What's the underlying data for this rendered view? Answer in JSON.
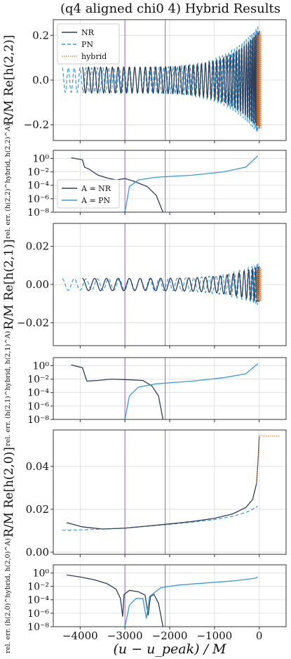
{
  "title": "(q4 aligned chi0 4) Hybrid Results",
  "x_axis_label": "(u − u_peak) / M",
  "x_ticks": [
    -4000,
    -3000,
    -2000,
    -1000,
    0
  ],
  "x_range": [
    -4600,
    600
  ],
  "vlines": [
    -3000,
    -2100
  ],
  "colors": {
    "nr": "#2e3f5c",
    "pn": "#3a9ad9",
    "hybrid": "#e8843a",
    "vline": "#9467bd",
    "grid": "#d8d8d8"
  },
  "chart_data": [
    {
      "id": "h22",
      "type": "line",
      "ylabel": "R/M Re[h(2,2)]",
      "ylim": [
        -0.27,
        0.27
      ],
      "yticks": [
        {
          "v": -0.2,
          "label": "−0.2"
        },
        {
          "v": 0.0,
          "label": "0.0"
        },
        {
          "v": 0.2,
          "label": "0.2"
        }
      ],
      "legend": {
        "placement": "top-left",
        "entries": [
          "NR",
          "PN",
          "hybrid"
        ]
      },
      "series": [
        {
          "name": "NR",
          "style": "solid",
          "x_start": -3950,
          "x_end": 0,
          "amp_start": 0.058,
          "amp_peak": 0.22,
          "cycles": 46
        },
        {
          "name": "PN",
          "style": "dashed",
          "x_start": -4400,
          "x_end": -30,
          "amp_start": 0.055,
          "amp_peak": 0.24,
          "cycles": 52
        },
        {
          "name": "hybrid",
          "style": "dotted",
          "x_start": -60,
          "x_end": 40,
          "amp_start": 0.2,
          "amp_peak": 0.22,
          "cycles": 5
        }
      ]
    },
    {
      "id": "err22",
      "type": "line",
      "scale": "log",
      "ylabel": "rel. err. (h(2,2)^hybrid, h(2,2)^A)",
      "ylim_log10": [
        -8,
        1.2
      ],
      "yticks": [
        {
          "v": 0,
          "label": "10⁰"
        },
        {
          "v": -2,
          "label": "10⁻²"
        },
        {
          "v": -4,
          "label": "10⁻⁴"
        },
        {
          "v": -6,
          "label": "10⁻⁶"
        },
        {
          "v": -8,
          "label": "10⁻⁸"
        }
      ],
      "legend": {
        "placement": "lower-left",
        "entries": [
          "A = NR",
          "A = PN"
        ]
      },
      "series": [
        {
          "name": "A = NR",
          "points": [
            [
              -4200,
              0.1
            ],
            [
              -3950,
              -0.2
            ],
            [
              -3900,
              -1.3
            ],
            [
              -3800,
              -1.6
            ],
            [
              -3600,
              -2.5
            ],
            [
              -3400,
              -2.9
            ],
            [
              -3200,
              -3.2
            ],
            [
              -3000,
              -3.0
            ],
            [
              -2800,
              -3.4
            ],
            [
              -2500,
              -4.2
            ],
            [
              -2300,
              -5.5
            ],
            [
              -2150,
              -8
            ]
          ]
        },
        {
          "name": "A = PN",
          "points": [
            [
              -3000,
              -8
            ],
            [
              -2900,
              -4.2
            ],
            [
              -2700,
              -3.2
            ],
            [
              -2300,
              -2.8
            ],
            [
              -1500,
              -2.5
            ],
            [
              -800,
              -2.0
            ],
            [
              -300,
              -1.3
            ],
            [
              -30,
              0.4
            ]
          ]
        }
      ]
    },
    {
      "id": "h21",
      "type": "line",
      "ylabel": "R/M Re[h(2,1)]",
      "ylim": [
        -0.032,
        0.032
      ],
      "yticks": [
        {
          "v": -0.02,
          "label": "−0.02"
        },
        {
          "v": 0.0,
          "label": "0.00"
        },
        {
          "v": 0.02,
          "label": "0.02"
        }
      ],
      "series": [
        {
          "name": "NR",
          "style": "solid",
          "x_start": -3950,
          "x_end": 0,
          "amp_start": 0.0032,
          "amp_peak": 0.0095,
          "cycles": 23
        },
        {
          "name": "PN",
          "style": "dashed",
          "x_start": -4400,
          "x_end": -30,
          "amp_start": 0.003,
          "amp_peak": 0.011,
          "cycles": 26
        },
        {
          "name": "hybrid",
          "style": "dotted",
          "x_start": -60,
          "x_end": 40,
          "amp_start": 0.008,
          "amp_peak": 0.009,
          "cycles": 4
        }
      ]
    },
    {
      "id": "err21",
      "type": "line",
      "scale": "log",
      "ylabel": "rel. err. (h(2,1)^hybrid, h(2,1)^A)",
      "ylim_log10": [
        -8,
        1.2
      ],
      "yticks": [
        {
          "v": 0,
          "label": "10⁰"
        },
        {
          "v": -2,
          "label": "10⁻²"
        },
        {
          "v": -4,
          "label": "10⁻⁴"
        },
        {
          "v": -6,
          "label": "10⁻⁶"
        },
        {
          "v": -8,
          "label": "10⁻⁸"
        }
      ],
      "series": [
        {
          "name": "A = NR",
          "points": [
            [
              -4200,
              0.1
            ],
            [
              -3950,
              -0.3
            ],
            [
              -3850,
              -2.3
            ],
            [
              -3600,
              -2.2
            ],
            [
              -3300,
              -2.0
            ],
            [
              -2900,
              -2.1
            ],
            [
              -2600,
              -2.2
            ],
            [
              -2400,
              -3.0
            ],
            [
              -2250,
              -4.5
            ],
            [
              -2150,
              -8
            ]
          ]
        },
        {
          "name": "A = PN",
          "points": [
            [
              -3000,
              -8
            ],
            [
              -2900,
              -4.5
            ],
            [
              -2700,
              -3.2
            ],
            [
              -2300,
              -2.7
            ],
            [
              -1500,
              -2.3
            ],
            [
              -800,
              -1.8
            ],
            [
              -300,
              -1.2
            ],
            [
              -30,
              0.3
            ]
          ]
        }
      ]
    },
    {
      "id": "h20",
      "type": "line",
      "ylabel": "R/M Re[h(2,0)]",
      "ylim": [
        -0.001,
        0.057
      ],
      "yticks": [
        {
          "v": 0.0,
          "label": "0.00"
        },
        {
          "v": 0.02,
          "label": "0.02"
        },
        {
          "v": 0.04,
          "label": "0.04"
        }
      ],
      "series": [
        {
          "name": "NR",
          "style": "solid",
          "points": [
            [
              -4300,
              0.0138
            ],
            [
              -3950,
              0.0118
            ],
            [
              -3500,
              0.0108
            ],
            [
              -3000,
              0.0112
            ],
            [
              -2500,
              0.0122
            ],
            [
              -2000,
              0.0132
            ],
            [
              -1500,
              0.0143
            ],
            [
              -1000,
              0.0158
            ],
            [
              -600,
              0.0178
            ],
            [
              -300,
              0.0208
            ],
            [
              -150,
              0.0245
            ],
            [
              -60,
              0.032
            ],
            [
              -20,
              0.045
            ],
            [
              0,
              0.054
            ]
          ]
        },
        {
          "name": "PN",
          "style": "dashed",
          "points": [
            [
              -4400,
              0.0102
            ],
            [
              -4000,
              0.0104
            ],
            [
              -3500,
              0.0108
            ],
            [
              -3000,
              0.0112
            ],
            [
              -2500,
              0.0121
            ],
            [
              -2000,
              0.013
            ],
            [
              -1500,
              0.014
            ],
            [
              -1000,
              0.0152
            ],
            [
              -600,
              0.0167
            ],
            [
              -300,
              0.0185
            ],
            [
              -100,
              0.0205
            ],
            [
              -30,
              0.0215
            ]
          ]
        },
        {
          "name": "hybrid",
          "style": "dotted",
          "points": [
            [
              -60,
              0.032
            ],
            [
              -20,
              0.045
            ],
            [
              0,
              0.0545
            ],
            [
              100,
              0.0542
            ],
            [
              300,
              0.0542
            ],
            [
              450,
              0.0542
            ]
          ]
        }
      ]
    },
    {
      "id": "err20",
      "type": "line",
      "scale": "log",
      "ylabel": "rel. err. (h(2,0)^hybrid, h(2,0)^A)",
      "ylim_log10": [
        -8,
        1.2
      ],
      "yticks": [
        {
          "v": 0,
          "label": "10⁰"
        },
        {
          "v": -2,
          "label": "10⁻²"
        },
        {
          "v": -4,
          "label": "10⁻⁴"
        },
        {
          "v": -6,
          "label": "10⁻⁶"
        },
        {
          "v": -8,
          "label": "10⁻⁸"
        }
      ],
      "series": [
        {
          "name": "A = NR",
          "points": [
            [
              -4300,
              -0.3
            ],
            [
              -4000,
              -0.6
            ],
            [
              -3700,
              -1.0
            ],
            [
              -3400,
              -1.6
            ],
            [
              -3200,
              -2.4
            ],
            [
              -3100,
              -3.8
            ],
            [
              -3050,
              -6.5
            ],
            [
              -3020,
              -3.2
            ],
            [
              -2900,
              -2.6
            ],
            [
              -2700,
              -2.8
            ],
            [
              -2550,
              -3.3
            ],
            [
              -2480,
              -6.3
            ],
            [
              -2430,
              -3.5
            ],
            [
              -2350,
              -3.2
            ],
            [
              -2250,
              -4.5
            ],
            [
              -2150,
              -8
            ]
          ]
        },
        {
          "name": "A = PN",
          "points": [
            [
              -3000,
              -8
            ],
            [
              -2900,
              -4.8
            ],
            [
              -2750,
              -3.8
            ],
            [
              -2600,
              -3.8
            ],
            [
              -2520,
              -6.8
            ],
            [
              -2450,
              -3.5
            ],
            [
              -2200,
              -2.2
            ],
            [
              -1800,
              -1.8
            ],
            [
              -1200,
              -1.5
            ],
            [
              -600,
              -1.2
            ],
            [
              -100,
              -0.8
            ],
            [
              -30,
              -0.6
            ]
          ]
        }
      ]
    }
  ]
}
